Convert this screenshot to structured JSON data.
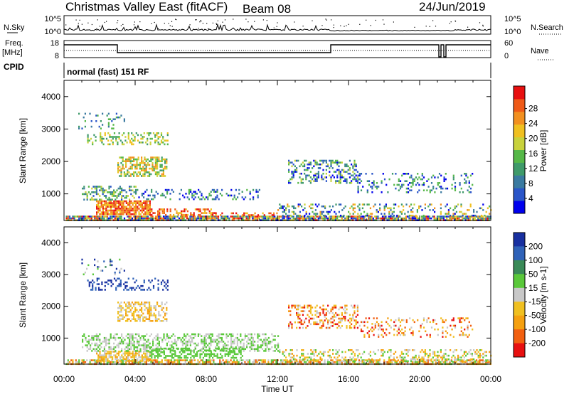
{
  "header": {
    "title": "Christmas Valley East (fitACF)",
    "beam": "Beam 08",
    "date": "24/Jun/2019",
    "mode": "normal (fast) 151 RF"
  },
  "top_panel_labels": {
    "nsky": "N.Sky",
    "nsky_ticks": [
      "10^5",
      "10^0"
    ],
    "nsearch": "N.Search",
    "nsearch_ticks": [
      "10^5",
      "10^0"
    ],
    "freq": "Freq.",
    "freq_unit": "[MHz]",
    "freq_ticks": [
      "18",
      "8"
    ],
    "nave": "Nave",
    "nave_ticks": [
      "60",
      "0"
    ],
    "cpid": "CPID"
  },
  "chart_data": [
    {
      "type": "heatmap",
      "name_key": "power",
      "xlabel": "",
      "ylabel": "Slant Range [km]",
      "x_ticks": [
        "00:00",
        "04:00",
        "08:00",
        "12:00",
        "16:00",
        "20:00",
        "00:00"
      ],
      "xlim_hours": [
        0,
        24
      ],
      "ylim_km": [
        180,
        4500
      ],
      "y_ticks": [
        1000,
        2000,
        3000,
        4000
      ],
      "colorbar": {
        "label": "Power [dB]",
        "ticks": [
          "4",
          "8",
          "12",
          "16",
          "20",
          "24",
          "28"
        ],
        "colors": [
          "#0000ee",
          "#2a55c8",
          "#3a7aa0",
          "#3f9a6a",
          "#56b848",
          "#c8d23c",
          "#f0c020",
          "#f29020",
          "#ef5a18",
          "#e81010"
        ]
      },
      "scatter_regions": [
        {
          "t0": 0.1,
          "t1": 24.0,
          "r0": 190,
          "r1": 330,
          "c": [
            0,
            9
          ],
          "d": 0.85
        },
        {
          "t0": 1.8,
          "t1": 4.8,
          "r0": 400,
          "r1": 800,
          "c": [
            6,
            9
          ],
          "d": 0.85
        },
        {
          "t0": 4.8,
          "t1": 8.5,
          "r0": 350,
          "r1": 550,
          "c": [
            6,
            9
          ],
          "d": 0.45
        },
        {
          "t0": 8.5,
          "t1": 12.0,
          "r0": 330,
          "r1": 430,
          "c": [
            6,
            9
          ],
          "d": 0.35
        },
        {
          "t0": 1.0,
          "t1": 4.0,
          "r0": 800,
          "r1": 1250,
          "c": [
            1,
            5
          ],
          "d": 0.45
        },
        {
          "t0": 4.0,
          "t1": 11.0,
          "r0": 850,
          "r1": 1150,
          "c": [
            0,
            4
          ],
          "d": 0.25
        },
        {
          "t0": 3.0,
          "t1": 5.8,
          "r0": 1550,
          "r1": 2150,
          "c": [
            3,
            7
          ],
          "d": 0.55
        },
        {
          "t0": 1.3,
          "t1": 5.8,
          "r0": 2550,
          "r1": 2900,
          "c": [
            3,
            6
          ],
          "d": 0.3
        },
        {
          "t0": 0.8,
          "t1": 3.4,
          "r0": 3000,
          "r1": 3500,
          "c": [
            1,
            4
          ],
          "d": 0.12
        },
        {
          "t0": 12.6,
          "t1": 16.5,
          "r0": 1350,
          "r1": 2050,
          "c": [
            0,
            5
          ],
          "d": 0.35
        },
        {
          "t0": 16.5,
          "t1": 23.0,
          "r0": 1050,
          "r1": 1650,
          "c": [
            0,
            4
          ],
          "d": 0.2
        },
        {
          "t0": 12.0,
          "t1": 24.0,
          "r0": 330,
          "r1": 700,
          "c": [
            0,
            7
          ],
          "d": 0.25
        }
      ]
    },
    {
      "type": "heatmap",
      "name_key": "velocity",
      "xlabel": "Time UT",
      "ylabel": "Slant Range [km]",
      "x_ticks": [
        "00:00",
        "04:00",
        "08:00",
        "12:00",
        "16:00",
        "20:00",
        "00:00"
      ],
      "xlim_hours": [
        0,
        24
      ],
      "ylim_km": [
        180,
        4500
      ],
      "y_ticks": [
        1000,
        2000,
        3000,
        4000
      ],
      "colorbar": {
        "label": "Velocity [m s-1]",
        "ticks": [
          "200",
          "100",
          "50",
          "15",
          "-15",
          "-50",
          "-100",
          "-200"
        ],
        "colors": [
          "#1830a0",
          "#2f62b8",
          "#3a8a58",
          "#5ac83a",
          "#c8c8c8",
          "#f0c020",
          "#f5a010",
          "#f26010",
          "#e81010"
        ]
      },
      "scatter_regions": [
        {
          "t0": 0.1,
          "t1": 24.0,
          "r0": 190,
          "r1": 330,
          "c": [
            3,
            7
          ],
          "d": 0.7
        },
        {
          "t0": 1.8,
          "t1": 4.8,
          "r0": 300,
          "r1": 600,
          "c": [
            4,
            6
          ],
          "d": 0.7
        },
        {
          "t0": 1.0,
          "t1": 12.0,
          "r0": 600,
          "r1": 1150,
          "c": [
            3,
            4
          ],
          "d": 0.45
        },
        {
          "t0": 4.8,
          "t1": 10.0,
          "r0": 400,
          "r1": 700,
          "c": [
            3,
            3
          ],
          "d": 0.5
        },
        {
          "t0": 3.0,
          "t1": 5.8,
          "r0": 1550,
          "r1": 2150,
          "c": [
            4,
            6
          ],
          "d": 0.5
        },
        {
          "t0": 1.3,
          "t1": 5.8,
          "r0": 2550,
          "r1": 2900,
          "c": [
            0,
            1
          ],
          "d": 0.3
        },
        {
          "t0": 0.8,
          "t1": 3.4,
          "r0": 3000,
          "r1": 3500,
          "c": [
            0,
            4
          ],
          "d": 0.1
        },
        {
          "t0": 12.6,
          "t1": 16.5,
          "r0": 1350,
          "r1": 2050,
          "c": [
            4,
            8
          ],
          "d": 0.35
        },
        {
          "t0": 16.5,
          "t1": 23.0,
          "r0": 1050,
          "r1": 1650,
          "c": [
            4,
            8
          ],
          "d": 0.2
        },
        {
          "t0": 12.0,
          "t1": 24.0,
          "r0": 300,
          "r1": 650,
          "c": [
            3,
            6
          ],
          "d": 0.3
        }
      ]
    }
  ]
}
